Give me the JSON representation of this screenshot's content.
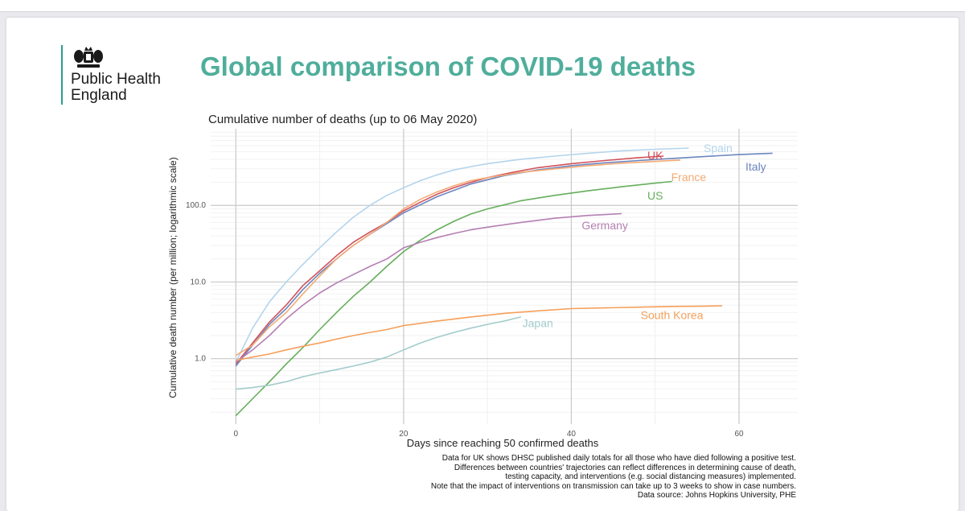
{
  "slide": {
    "org_name_line1": "Public Health",
    "org_name_line2": "England",
    "title": "Global comparison of COVID-19 deaths"
  },
  "footnotes": [
    "Data for UK shows DHSC published daily totals for all those who have died following a positive test.",
    "Differences between countries' trajectories can reflect differences in determining cause of death,",
    "testing capacity, and interventions (e.g. social distancing measures) implemented.",
    "Note that the impact of interventions on transmission can take up to 3 weeks to show in case numbers.",
    "Data source: Johns Hopkins University, PHE"
  ],
  "chart_data": {
    "type": "line",
    "title": "Cumulative number of deaths (up to 06 May 2020)",
    "xlabel": "Days since reaching 50 confirmed deaths",
    "ylabel": "Cumulative death number (per million; logarithmic scale)",
    "yscale": "log",
    "xlim": [
      -3,
      67
    ],
    "ylim": [
      0.14,
      1000
    ],
    "xticks": [
      0,
      20,
      40,
      60
    ],
    "xtick_labels": [
      "0",
      "20",
      "40",
      "60"
    ],
    "yticks": [
      1,
      10,
      100
    ],
    "ytick_labels": [
      "1.0",
      "10.0",
      "100.0"
    ],
    "grid": true,
    "legend": "direct labels at line ends",
    "series": [
      {
        "name": "Spain",
        "color": "#b3d4ec",
        "x": [
          0,
          2,
          4,
          6,
          8,
          10,
          12,
          14,
          16,
          18,
          20,
          22,
          24,
          26,
          28,
          30,
          34,
          38,
          42,
          46,
          50,
          54
        ],
        "y": [
          0.9,
          2.5,
          5.5,
          10,
          17,
          28,
          45,
          70,
          100,
          135,
          170,
          210,
          250,
          290,
          320,
          350,
          400,
          440,
          480,
          515,
          540,
          560
        ]
      },
      {
        "name": "UK",
        "color": "#d1525c",
        "x": [
          0,
          2,
          4,
          6,
          8,
          10,
          12,
          14,
          16,
          18,
          20,
          22,
          24,
          26,
          28,
          30,
          33,
          36,
          40,
          44,
          48,
          51
        ],
        "y": [
          0.85,
          1.6,
          3,
          5,
          9,
          14,
          22,
          33,
          45,
          60,
          85,
          110,
          140,
          170,
          200,
          230,
          270,
          310,
          350,
          385,
          420,
          440
        ]
      },
      {
        "name": "Italy",
        "color": "#6b86bf",
        "x": [
          0,
          2,
          4,
          6,
          8,
          10,
          12,
          14,
          16,
          18,
          20,
          24,
          28,
          32,
          36,
          40,
          44,
          48,
          52,
          56,
          60,
          64
        ],
        "y": [
          0.8,
          1.5,
          2.8,
          4.5,
          8,
          13,
          20,
          30,
          42,
          58,
          80,
          130,
          190,
          245,
          290,
          330,
          360,
          385,
          410,
          435,
          460,
          480
        ]
      },
      {
        "name": "France",
        "color": "#f4aa74",
        "x": [
          0,
          2,
          4,
          6,
          8,
          10,
          12,
          14,
          16,
          18,
          20,
          22,
          24,
          26,
          28,
          30,
          34,
          38,
          42,
          46,
          50,
          53
        ],
        "y": [
          1.1,
          1.5,
          2.6,
          4,
          7,
          12,
          20,
          30,
          42,
          60,
          90,
          120,
          150,
          180,
          210,
          230,
          270,
          300,
          330,
          355,
          375,
          390
        ]
      },
      {
        "name": "US",
        "color": "#66ae5c",
        "x": [
          0,
          2,
          4,
          6,
          8,
          10,
          12,
          14,
          16,
          18,
          20,
          22,
          24,
          26,
          28,
          30,
          34,
          38,
          42,
          46,
          50,
          52
        ],
        "y": [
          0.18,
          0.3,
          0.5,
          0.85,
          1.4,
          2.4,
          4,
          6.5,
          10,
          16,
          25,
          35,
          48,
          62,
          77,
          90,
          115,
          135,
          155,
          175,
          195,
          205
        ]
      },
      {
        "name": "Germany",
        "color": "#b57fb3",
        "x": [
          0,
          2,
          4,
          6,
          8,
          10,
          12,
          14,
          16,
          18,
          20,
          22,
          24,
          26,
          28,
          30,
          34,
          38,
          42,
          46
        ],
        "y": [
          0.9,
          1.3,
          2,
          3.3,
          5,
          7.2,
          9.7,
          12.5,
          16,
          20,
          28,
          33,
          38,
          43,
          48,
          52,
          60,
          68,
          74,
          78
        ]
      },
      {
        "name": "Japan",
        "color": "#a3cbcb",
        "x": [
          0,
          2,
          4,
          6,
          8,
          10,
          12,
          14,
          16,
          18,
          20,
          22,
          24,
          26,
          28,
          30,
          32,
          34
        ],
        "y": [
          0.4,
          0.42,
          0.45,
          0.5,
          0.58,
          0.65,
          0.72,
          0.8,
          0.9,
          1.05,
          1.3,
          1.6,
          1.9,
          2.2,
          2.5,
          2.8,
          3.1,
          3.5
        ]
      },
      {
        "name": "South Korea",
        "color": "#f59f5a",
        "x": [
          0,
          2,
          4,
          6,
          8,
          10,
          12,
          14,
          16,
          18,
          20,
          24,
          28,
          32,
          36,
          40,
          44,
          48,
          52,
          56,
          58
        ],
        "y": [
          0.95,
          1.05,
          1.15,
          1.3,
          1.45,
          1.6,
          1.8,
          2,
          2.2,
          2.4,
          2.7,
          3.1,
          3.5,
          3.9,
          4.2,
          4.5,
          4.6,
          4.7,
          4.8,
          4.85,
          4.9
        ]
      }
    ],
    "line_labels": [
      {
        "text": "Spain",
        "x": 57.5,
        "y": 560
      },
      {
        "text": "UK",
        "x": 50,
        "y": 450
      },
      {
        "text": "Italy",
        "x": 62,
        "y": 320
      },
      {
        "text": "France",
        "x": 54,
        "y": 235
      },
      {
        "text": "US",
        "x": 50,
        "y": 135
      },
      {
        "text": "Germany",
        "x": 44,
        "y": 55
      },
      {
        "text": "Japan",
        "x": 36,
        "y": 2.9
      },
      {
        "text": "South Korea",
        "x": 52,
        "y": 3.7
      }
    ]
  }
}
